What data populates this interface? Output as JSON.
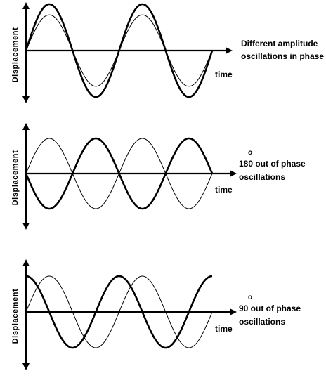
{
  "panels": [
    {
      "id": "panel-1",
      "y_label": "Displacement",
      "x_label": "time",
      "caption_degree": "",
      "caption_lines": [
        "Different amplitude",
        "oscillations in phase"
      ],
      "waves": [
        {
          "role": "bold",
          "amplitude": 1.0,
          "phase_deg": 0
        },
        {
          "role": "thin",
          "amplitude": 0.77,
          "phase_deg": 0
        }
      ]
    },
    {
      "id": "panel-2",
      "y_label": "Displacement",
      "x_label": "time",
      "caption_degree": "o",
      "caption_lines": [
        "180 out of phase",
        "oscillations"
      ],
      "waves": [
        {
          "role": "thin",
          "amplitude": 1.0,
          "phase_deg": 0
        },
        {
          "role": "bold",
          "amplitude": 1.0,
          "phase_deg": 180
        }
      ]
    },
    {
      "id": "panel-3",
      "y_label": "Displacement",
      "x_label": "time",
      "caption_degree": "o",
      "caption_lines": [
        "90 out of phase",
        "oscillations"
      ],
      "waves": [
        {
          "role": "thin",
          "amplitude": 1.0,
          "phase_deg": 0
        },
        {
          "role": "bold",
          "amplitude": 1.0,
          "phase_deg": 90
        }
      ]
    }
  ]
}
